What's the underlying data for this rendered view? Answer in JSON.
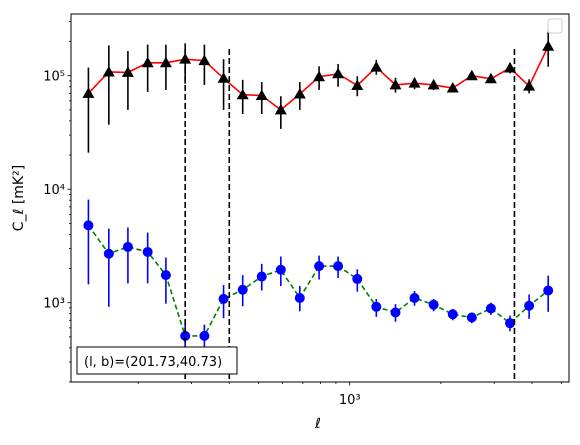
{
  "chart_data": {
    "type": "scatter",
    "title": "",
    "xlabel": "ℓ",
    "ylabel": "C_ℓ  [mK²]",
    "xscale": "log",
    "yscale": "log",
    "xlim": [
      120,
      5300
    ],
    "ylim": [
      200,
      350000
    ],
    "x_tick_labels": [
      {
        "value": 1000,
        "label": "10³"
      }
    ],
    "y_tick_labels": [
      {
        "value": 1000,
        "label": "10³"
      },
      {
        "value": 10000,
        "label": "10⁴"
      },
      {
        "value": 100000,
        "label": "10⁵"
      }
    ],
    "grid": false,
    "legend": {
      "placement": "top-right",
      "entries": []
    },
    "annotation": "(l, b)=(201.73,40.73)",
    "vlines": [
      286,
      400,
      3500
    ],
    "series": [
      {
        "marker": "triangle",
        "marker_color": "#000000",
        "line_color": "#ff0000",
        "line_style": "solid",
        "points": [
          {
            "x": 137,
            "y": 70000,
            "lo": 21000,
            "hi": 118000
          },
          {
            "x": 160,
            "y": 108000,
            "lo": 37000,
            "hi": 185000
          },
          {
            "x": 185,
            "y": 107000,
            "lo": 50000,
            "hi": 165000
          },
          {
            "x": 215,
            "y": 130000,
            "lo": 72000,
            "hi": 188000
          },
          {
            "x": 247,
            "y": 130000,
            "lo": 75000,
            "hi": 188000
          },
          {
            "x": 286,
            "y": 140000,
            "lo": 85000,
            "hi": 193000
          },
          {
            "x": 331,
            "y": 136000,
            "lo": 83000,
            "hi": 188000
          },
          {
            "x": 383,
            "y": 95000,
            "lo": 50000,
            "hi": 140000
          },
          {
            "x": 443,
            "y": 68000,
            "lo": 46000,
            "hi": 92000
          },
          {
            "x": 512,
            "y": 67000,
            "lo": 46000,
            "hi": 88000
          },
          {
            "x": 592,
            "y": 50000,
            "lo": 34000,
            "hi": 66000
          },
          {
            "x": 684,
            "y": 69000,
            "lo": 50000,
            "hi": 88000
          },
          {
            "x": 792,
            "y": 98000,
            "lo": 75000,
            "hi": 121000
          },
          {
            "x": 915,
            "y": 104000,
            "lo": 80000,
            "hi": 127000
          },
          {
            "x": 1059,
            "y": 82000,
            "lo": 66000,
            "hi": 99000
          },
          {
            "x": 1224,
            "y": 119000,
            "lo": 102000,
            "hi": 138000
          },
          {
            "x": 1416,
            "y": 83000,
            "lo": 71000,
            "hi": 96000
          },
          {
            "x": 1637,
            "y": 86000,
            "lo": 76000,
            "hi": 96000
          },
          {
            "x": 1893,
            "y": 83000,
            "lo": 75000,
            "hi": 92000
          },
          {
            "x": 2189,
            "y": 78000,
            "lo": 72000,
            "hi": 86000
          },
          {
            "x": 2531,
            "y": 100000,
            "lo": 92000,
            "hi": 108000
          },
          {
            "x": 2926,
            "y": 94000,
            "lo": 86000,
            "hi": 102000
          },
          {
            "x": 3384,
            "y": 117000,
            "lo": 105000,
            "hi": 130000
          },
          {
            "x": 3913,
            "y": 81000,
            "lo": 70000,
            "hi": 93000
          },
          {
            "x": 4524,
            "y": 182000,
            "lo": 120000,
            "hi": 245000
          }
        ]
      },
      {
        "marker": "circle",
        "marker_color": "#0000ff",
        "line_color": "#008000",
        "line_style": "dashed",
        "points": [
          {
            "x": 137,
            "y": 4800,
            "lo": 1450,
            "hi": 8100
          },
          {
            "x": 160,
            "y": 2700,
            "lo": 920,
            "hi": 4500
          },
          {
            "x": 185,
            "y": 3100,
            "lo": 1480,
            "hi": 4600
          },
          {
            "x": 215,
            "y": 2800,
            "lo": 1480,
            "hi": 4150
          },
          {
            "x": 247,
            "y": 1750,
            "lo": 980,
            "hi": 2500
          },
          {
            "x": 286,
            "y": 510,
            "lo": 400,
            "hi": 640
          },
          {
            "x": 331,
            "y": 510,
            "lo": 400,
            "hi": 640
          },
          {
            "x": 383,
            "y": 1080,
            "lo": 730,
            "hi": 1430
          },
          {
            "x": 443,
            "y": 1300,
            "lo": 930,
            "hi": 1750
          },
          {
            "x": 512,
            "y": 1700,
            "lo": 1280,
            "hi": 2200
          },
          {
            "x": 592,
            "y": 1950,
            "lo": 1400,
            "hi": 2550
          },
          {
            "x": 684,
            "y": 1100,
            "lo": 840,
            "hi": 1400
          },
          {
            "x": 792,
            "y": 2100,
            "lo": 1600,
            "hi": 2600
          },
          {
            "x": 915,
            "y": 2100,
            "lo": 1650,
            "hi": 2550
          },
          {
            "x": 1059,
            "y": 1620,
            "lo": 1250,
            "hi": 1970
          },
          {
            "x": 1224,
            "y": 920,
            "lo": 750,
            "hi": 1080
          },
          {
            "x": 1416,
            "y": 820,
            "lo": 680,
            "hi": 970
          },
          {
            "x": 1637,
            "y": 1100,
            "lo": 940,
            "hi": 1270
          },
          {
            "x": 1893,
            "y": 960,
            "lo": 840,
            "hi": 1080
          },
          {
            "x": 2189,
            "y": 790,
            "lo": 700,
            "hi": 880
          },
          {
            "x": 2531,
            "y": 740,
            "lo": 660,
            "hi": 820
          },
          {
            "x": 2926,
            "y": 890,
            "lo": 780,
            "hi": 1000
          },
          {
            "x": 3384,
            "y": 660,
            "lo": 560,
            "hi": 770
          },
          {
            "x": 3913,
            "y": 940,
            "lo": 720,
            "hi": 1180
          },
          {
            "x": 4524,
            "y": 1280,
            "lo": 830,
            "hi": 1730
          }
        ]
      }
    ]
  }
}
